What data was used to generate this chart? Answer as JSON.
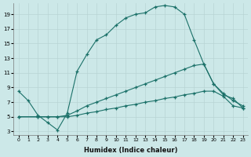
{
  "xlabel": "Humidex (Indice chaleur)",
  "bg_color": "#cce8e8",
  "line_color": "#1a7068",
  "grid_color": "#b8d4d4",
  "xlim": [
    -0.5,
    23.5
  ],
  "ylim": [
    2.5,
    20.5
  ],
  "xticks": [
    0,
    1,
    2,
    3,
    4,
    5,
    6,
    7,
    8,
    9,
    10,
    11,
    12,
    13,
    14,
    15,
    16,
    17,
    18,
    19,
    20,
    21,
    22,
    23
  ],
  "yticks": [
    3,
    5,
    7,
    9,
    11,
    13,
    15,
    17,
    19
  ],
  "curve1_x": [
    0,
    1,
    2,
    3,
    4,
    5,
    6,
    7,
    8,
    9,
    10,
    11,
    12,
    13,
    14,
    15,
    16,
    17,
    18,
    19,
    20,
    21,
    22,
    23
  ],
  "curve1_y": [
    8.5,
    7.2,
    5.2,
    4.2,
    3.2,
    5.5,
    11.2,
    13.5,
    15.5,
    16.2,
    17.5,
    18.5,
    19.0,
    19.2,
    20.0,
    20.2,
    20.0,
    19.0,
    15.5,
    12.2,
    9.5,
    8.2,
    7.2,
    6.5
  ],
  "curve2_x": [
    0,
    2,
    3,
    4,
    5,
    6,
    7,
    8,
    9,
    10,
    11,
    12,
    13,
    14,
    15,
    16,
    17,
    18,
    19,
    20,
    21,
    22,
    23
  ],
  "curve2_y": [
    5.0,
    5.0,
    5.0,
    5.0,
    5.2,
    5.8,
    6.5,
    7.0,
    7.5,
    8.0,
    8.5,
    9.0,
    9.5,
    10.0,
    10.5,
    11.0,
    11.5,
    12.0,
    12.2,
    9.5,
    8.0,
    7.5,
    6.2
  ],
  "curve3_x": [
    0,
    2,
    3,
    4,
    5,
    6,
    7,
    8,
    9,
    10,
    11,
    12,
    13,
    14,
    15,
    16,
    17,
    18,
    19,
    20,
    21,
    22,
    23
  ],
  "curve3_y": [
    5.0,
    5.0,
    5.0,
    5.0,
    5.0,
    5.2,
    5.5,
    5.7,
    6.0,
    6.2,
    6.5,
    6.7,
    7.0,
    7.2,
    7.5,
    7.7,
    8.0,
    8.2,
    8.5,
    8.5,
    7.8,
    6.5,
    6.2
  ]
}
